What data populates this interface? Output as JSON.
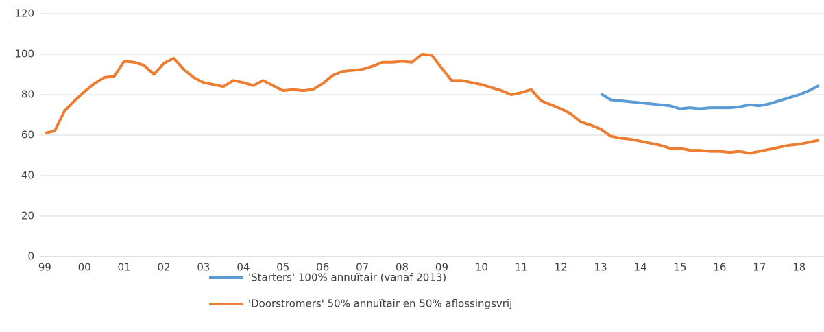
{
  "chart_data": {
    "type": "line",
    "categories": [
      "99",
      null,
      null,
      null,
      "00",
      null,
      null,
      null,
      "01",
      null,
      null,
      null,
      "02",
      null,
      null,
      null,
      "03",
      null,
      null,
      null,
      "04",
      null,
      null,
      null,
      "05",
      null,
      null,
      null,
      "06",
      null,
      null,
      null,
      "07",
      null,
      null,
      null,
      "08",
      null,
      null,
      null,
      "09",
      null,
      null,
      null,
      "10",
      null,
      null,
      null,
      "11",
      null,
      null,
      null,
      "12",
      null,
      null,
      null,
      "13",
      null,
      null,
      null,
      "14",
      null,
      null,
      null,
      "15",
      null,
      null,
      null,
      "16",
      null,
      null,
      null,
      "17",
      null,
      null,
      null,
      "18",
      null,
      null
    ],
    "series": [
      {
        "name": "'Starters' 100% annuïtair (vanaf 2013)",
        "color": "#5b9bd5",
        "values": [
          null,
          null,
          null,
          null,
          null,
          null,
          null,
          null,
          null,
          null,
          null,
          null,
          null,
          null,
          null,
          null,
          null,
          null,
          null,
          null,
          null,
          null,
          null,
          null,
          null,
          null,
          null,
          null,
          null,
          null,
          null,
          null,
          null,
          null,
          null,
          null,
          null,
          null,
          null,
          null,
          null,
          null,
          null,
          null,
          null,
          null,
          null,
          null,
          null,
          null,
          null,
          null,
          null,
          null,
          null,
          null,
          80.5,
          77.5,
          77,
          76.5,
          76,
          75.5,
          75,
          74.5,
          73,
          73.5,
          73,
          73.5,
          73.5,
          73.5,
          74,
          75,
          74.5,
          75.5,
          77,
          78.5,
          80,
          82,
          84.5
        ]
      },
      {
        "name": "'Doorstromers' 50% annuïtair en 50% aflossingsvrij",
        "color": "#ed7d31",
        "values": [
          61,
          62,
          72,
          77,
          81.5,
          85.5,
          88.5,
          89,
          96.5,
          96,
          94.5,
          90,
          95.5,
          98,
          92.5,
          88.5,
          86,
          85,
          84,
          87,
          86,
          84.5,
          87,
          84.5,
          82,
          82.5,
          82,
          82.5,
          85.5,
          89.5,
          91.5,
          92,
          92.5,
          94,
          96,
          96,
          96.5,
          96,
          100,
          99.5,
          93,
          87,
          87,
          86,
          85,
          83.5,
          82,
          80,
          81,
          82.5,
          77,
          75,
          73,
          70.5,
          66.5,
          65,
          63,
          59.5,
          58.5,
          58,
          57,
          56,
          55,
          53.5,
          53.5,
          52.5,
          52.5,
          52,
          52,
          51.5,
          52,
          51,
          52,
          53,
          54,
          55,
          55.5,
          56.5,
          57.5
        ]
      }
    ],
    "ylim": [
      0,
      120
    ],
    "yticks": [
      0,
      20,
      40,
      60,
      80,
      100,
      120
    ],
    "grid": true
  }
}
